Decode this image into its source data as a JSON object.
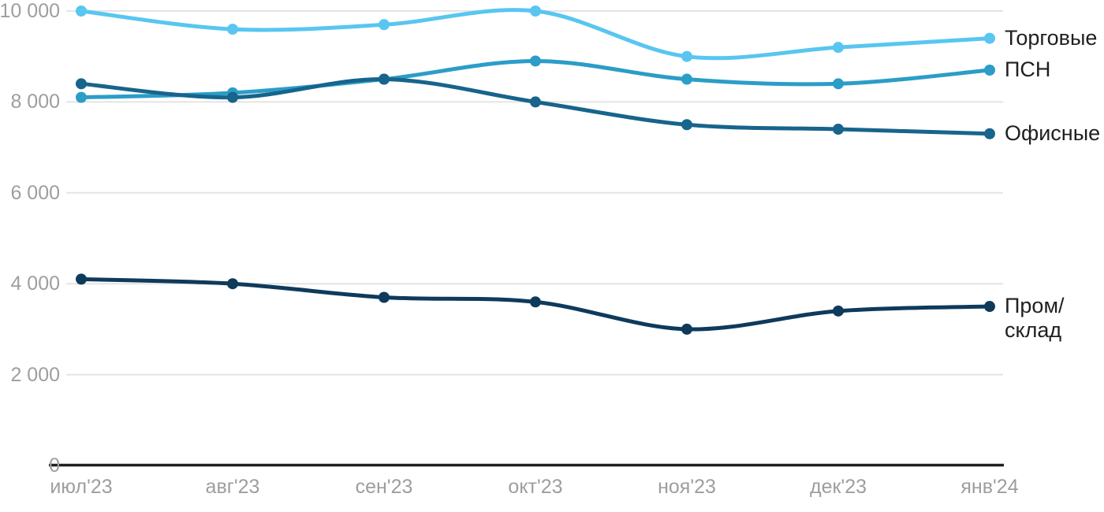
{
  "chart_data": {
    "type": "line",
    "title": "",
    "xlabel": "",
    "ylabel": "",
    "x_labels": [
      "июл'23",
      "авг'23",
      "сен'23",
      "окт'23",
      "ноя'23",
      "дек'23",
      "янв'24"
    ],
    "y_ticks": [
      0,
      2000,
      4000,
      6000,
      8000,
      10000
    ],
    "y_tick_labels": [
      "0",
      "2 000",
      "4 000",
      "6 000",
      "8 000",
      "10 000"
    ],
    "ylim": [
      0,
      10000
    ],
    "grid": "horizontal",
    "curve": "smooth",
    "legend_position": "right-of-line-ends",
    "series": [
      {
        "name": "Торговые",
        "label": "Торговые",
        "slug": "torgovye",
        "color": "#58C6F0",
        "values": [
          10000,
          9600,
          9700,
          10000,
          9000,
          9200,
          9400
        ]
      },
      {
        "name": "ПСН",
        "label": "ПСН",
        "slug": "psn",
        "color": "#2B9DC7",
        "values": [
          8100,
          8200,
          8500,
          8900,
          8500,
          8400,
          8700
        ]
      },
      {
        "name": "Офисные",
        "label": "Офисные",
        "slug": "ofisnye",
        "color": "#17648C",
        "values": [
          8400,
          8100,
          8500,
          8000,
          7500,
          7400,
          7300
        ]
      },
      {
        "name": "Пром/склад",
        "label": "Пром/\nсклад",
        "slug": "prom-sklad",
        "color": "#0E3A5C",
        "values": [
          4100,
          4000,
          3700,
          3600,
          3000,
          3400,
          3500
        ]
      }
    ],
    "colors": {
      "grid": "#E4E4E4",
      "axis": "#212121",
      "tick_text": "#9E9E9E",
      "label_text": "#1F1F1F",
      "background": "#FFFFFF"
    }
  }
}
